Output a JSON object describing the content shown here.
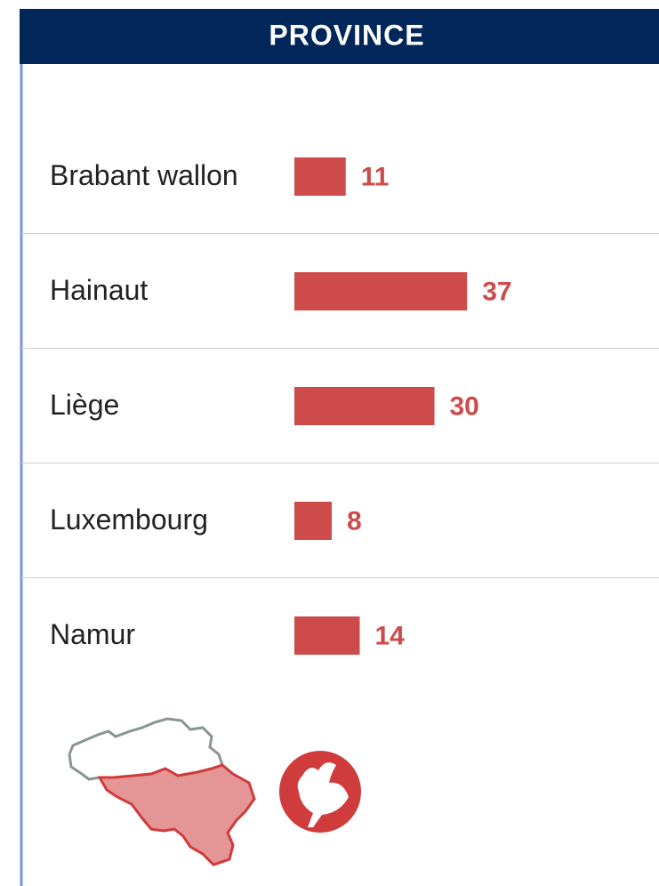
{
  "chart_data": {
    "type": "bar",
    "title": "PROVINCE",
    "categories": [
      "Brabant wallon",
      "Hainaut",
      "Liège",
      "Luxembourg",
      "Namur"
    ],
    "values": [
      11,
      37,
      30,
      8,
      14
    ],
    "color": "#cd4b4b"
  }
}
